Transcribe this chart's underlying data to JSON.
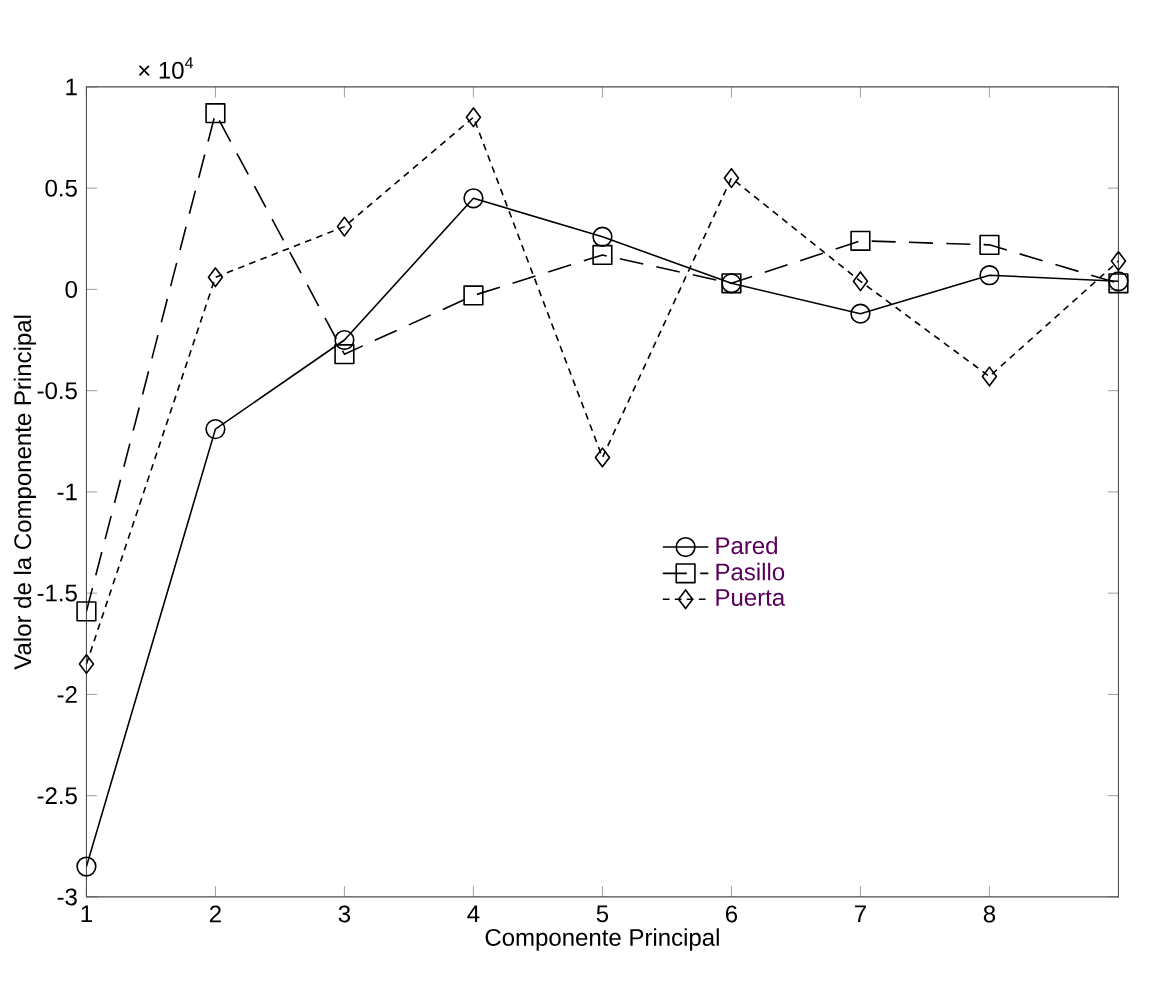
{
  "chart_data": {
    "type": "line",
    "xlabel": "Componente Principal",
    "ylabel": "Valor de la Componente Principal",
    "annotations": [
      "× 10$^{4}$"
    ],
    "x": [
      1,
      2,
      3,
      4,
      5,
      6,
      7,
      8,
      9
    ],
    "series": [
      {
        "name": "Pared",
        "color": "#000000",
        "marker": "circle",
        "line_style": "solid",
        "values": [
          -2.85,
          -0.69,
          -0.25,
          0.45,
          0.26,
          0.03,
          -0.12,
          0.07,
          0.04
        ]
      },
      {
        "name": "Pasillo",
        "color": "#000000",
        "marker": "square",
        "line_style": "dashed",
        "values": [
          -1.59,
          0.87,
          -0.32,
          -0.03,
          0.17,
          0.03,
          0.24,
          0.22,
          0.03
        ]
      },
      {
        "name": "Puerta",
        "color": "#000000",
        "marker": "diamond",
        "line_style": "dotted",
        "values": [
          -1.85,
          0.06,
          0.31,
          0.85,
          -0.83,
          0.55,
          0.04,
          -0.43,
          0.14
        ]
      }
    ],
    "xlim": [
      1,
      9
    ],
    "xticks": [
      1,
      2,
      3,
      4,
      5,
      6,
      7,
      8
    ],
    "ylim": [
      -3,
      1
    ],
    "yticks": [
      -3,
      -2.5,
      -2,
      -1.5,
      -1,
      -0.5,
      0,
      0.5,
      1
    ],
    "grid": false,
    "legend": "right"
  }
}
